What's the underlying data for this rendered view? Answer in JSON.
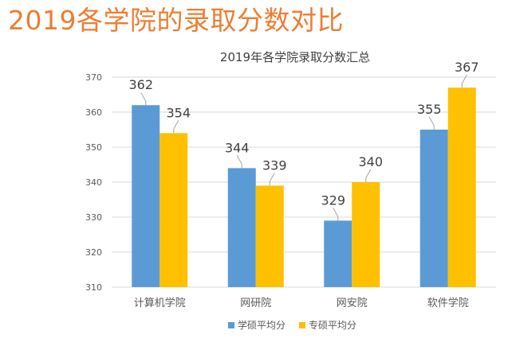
{
  "slide": {
    "title": "2019各学院的录取分数对比"
  },
  "chart_data": {
    "type": "bar",
    "title": "2019年各学院录取分数汇总",
    "categories": [
      "计算机学院",
      "网研院",
      "网安院",
      "软件学院"
    ],
    "series": [
      {
        "name": "学硕平均分",
        "values": [
          362,
          344,
          329,
          355
        ],
        "color": "#5B9BD5"
      },
      {
        "name": "专硕平均分",
        "values": [
          354,
          339,
          340,
          367
        ],
        "color": "#FFC000"
      }
    ],
    "ylim": [
      310,
      370
    ],
    "yticks": [
      310,
      320,
      330,
      340,
      350,
      360,
      370
    ],
    "grid": true,
    "legend": "bottom",
    "xlabel": "",
    "ylabel": ""
  }
}
